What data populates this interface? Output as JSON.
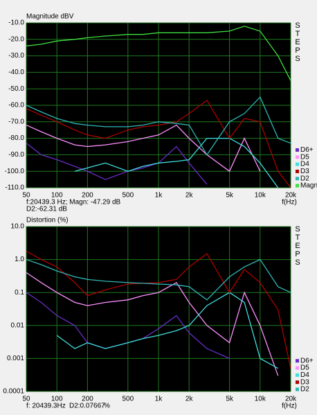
{
  "chart_data": [
    {
      "type": "line",
      "title": "Magnitude dBV",
      "xlabel": "f(Hz)",
      "side_label": "STEPS",
      "readout": [
        "f:20439.3 Hz; Magn: -47.29 dB",
        "D2:-62.31 dB"
      ],
      "log_x": true,
      "log_y": false,
      "grid": true,
      "legend": "bottom-right",
      "background": "#000000",
      "grid_color": "#1f7a1f",
      "xlim": [
        50,
        20000
      ],
      "xticks": [
        50,
        100,
        200,
        500,
        {
          "value": 1000,
          "label": "1k"
        },
        {
          "value": 2000,
          "label": "2k"
        },
        {
          "value": 5000,
          "label": "5k"
        },
        {
          "value": 10000,
          "label": "10k"
        },
        {
          "value": 20000,
          "label": "20k"
        }
      ],
      "ylim": [
        -110,
        -10
      ],
      "yticks": [
        {
          "value": -10,
          "label": "-10.0"
        },
        {
          "value": -20,
          "label": "-20.0"
        },
        {
          "value": -30,
          "label": "-30.0"
        },
        {
          "value": -40,
          "label": "-40.0"
        },
        {
          "value": -50,
          "label": "-50.0"
        },
        {
          "value": -60,
          "label": "-60.0"
        },
        {
          "value": -70,
          "label": "-70.0"
        },
        {
          "value": -80,
          "label": "-80.0"
        },
        {
          "value": -90,
          "label": "-90.0"
        },
        {
          "value": -100,
          "label": "-100.0"
        },
        {
          "value": -110,
          "label": "-110.0"
        }
      ],
      "x": [
        50,
        70,
        100,
        150,
        200,
        300,
        500,
        700,
        1000,
        1500,
        2000,
        3000,
        5000,
        7000,
        10000,
        15000,
        20000
      ],
      "series": [
        {
          "name": "D6+",
          "color": "#6a2cc8",
          "values": [
            -83,
            -90,
            -93,
            -97,
            -100,
            -105,
            -100,
            -98,
            -95,
            -85,
            -95,
            -108,
            null,
            null,
            null,
            null,
            null
          ]
        },
        {
          "name": "D5",
          "color": "#ff90ff",
          "values": [
            -72,
            -76,
            -80,
            -84,
            -85,
            -84,
            -82,
            -80,
            -78,
            -72,
            -80,
            -90,
            -100,
            -80,
            -100,
            null,
            null
          ]
        },
        {
          "name": "D4",
          "color": "#40e0e0",
          "values": [
            null,
            null,
            null,
            -100,
            -98,
            -95,
            -100,
            -97,
            -95,
            -94,
            -93,
            -80,
            -80,
            -85,
            -95,
            -110,
            null
          ]
        },
        {
          "name": "D3",
          "color": "#b00000",
          "values": [
            -62,
            -66,
            -70,
            -75,
            -78,
            -80,
            -75,
            -73,
            -72,
            -70,
            -65,
            -57,
            -80,
            -68,
            -70,
            -100,
            -110
          ]
        },
        {
          "name": "D2",
          "color": "#30b8b8",
          "values": [
            -60,
            -64,
            -68,
            -71,
            -72,
            -73,
            -73,
            -72,
            -70,
            -71,
            -72,
            -90,
            -70,
            -65,
            -55,
            -80,
            -83
          ]
        },
        {
          "name": "Magn",
          "color": "#40e040",
          "values": [
            -24,
            -23,
            -21,
            -20,
            -19,
            -18,
            -17,
            -17,
            -16,
            -16,
            -16,
            -16,
            -15,
            -12,
            -15,
            -30,
            -45
          ]
        }
      ]
    },
    {
      "type": "line",
      "title": "Distortion (%)",
      "xlabel": "f(Hz)",
      "side_label": "STEPS",
      "readout": [
        "f: 20439.3Hz",
        "D2:0.07667",
        "%"
      ],
      "log_x": true,
      "log_y": true,
      "grid": true,
      "legend": "bottom-right",
      "background": "#000000",
      "grid_color": "#1f7a1f",
      "xlim": [
        50,
        20000
      ],
      "xticks": [
        50,
        100,
        200,
        500,
        {
          "value": 1000,
          "label": "1k"
        },
        {
          "value": 2000,
          "label": "2k"
        },
        {
          "value": 5000,
          "label": "5k"
        },
        {
          "value": 10000,
          "label": "10k"
        },
        {
          "value": 20000,
          "label": "20k"
        }
      ],
      "ylim": [
        0.0001,
        10
      ],
      "yticks": [
        {
          "value": 10,
          "label": "10.0"
        },
        {
          "value": 1,
          "label": "1.0"
        },
        0.1,
        0.01,
        0.001,
        0.0001
      ],
      "x": [
        50,
        70,
        100,
        150,
        200,
        300,
        500,
        700,
        1000,
        1500,
        2000,
        3000,
        5000,
        7000,
        10000,
        15000,
        20000
      ],
      "series": [
        {
          "name": "D6+",
          "color": "#6a2cc8",
          "values": [
            0.1,
            0.05,
            0.02,
            0.01,
            0.003,
            0.002,
            0.003,
            0.004,
            0.008,
            0.02,
            0.006,
            0.002,
            0.001,
            null,
            null,
            null,
            null
          ]
        },
        {
          "name": "D5",
          "color": "#ff90ff",
          "values": [
            0.4,
            0.2,
            0.1,
            0.05,
            0.04,
            0.05,
            0.06,
            0.08,
            0.1,
            0.2,
            0.05,
            0.01,
            0.003,
            0.1,
            0.01,
            0.0003,
            null
          ]
        },
        {
          "name": "D4",
          "color": "#40e0e0",
          "values": [
            null,
            null,
            0.005,
            0.002,
            0.003,
            0.002,
            0.003,
            0.004,
            0.005,
            0.007,
            0.01,
            0.04,
            0.1,
            0.05,
            0.001,
            0.0005,
            null
          ]
        },
        {
          "name": "D3",
          "color": "#b00000",
          "values": [
            1.8,
            1.0,
            0.6,
            0.2,
            0.08,
            0.12,
            0.18,
            0.19,
            0.2,
            0.25,
            0.6,
            1.5,
            0.1,
            0.5,
            0.2,
            0.03,
            0.0005
          ]
        },
        {
          "name": "D2",
          "color": "#30b8b8",
          "values": [
            1.0,
            0.7,
            0.45,
            0.3,
            0.25,
            0.22,
            0.2,
            0.19,
            0.18,
            0.17,
            0.15,
            0.06,
            0.3,
            0.6,
            1.0,
            0.15,
            0.1
          ]
        }
      ]
    }
  ]
}
